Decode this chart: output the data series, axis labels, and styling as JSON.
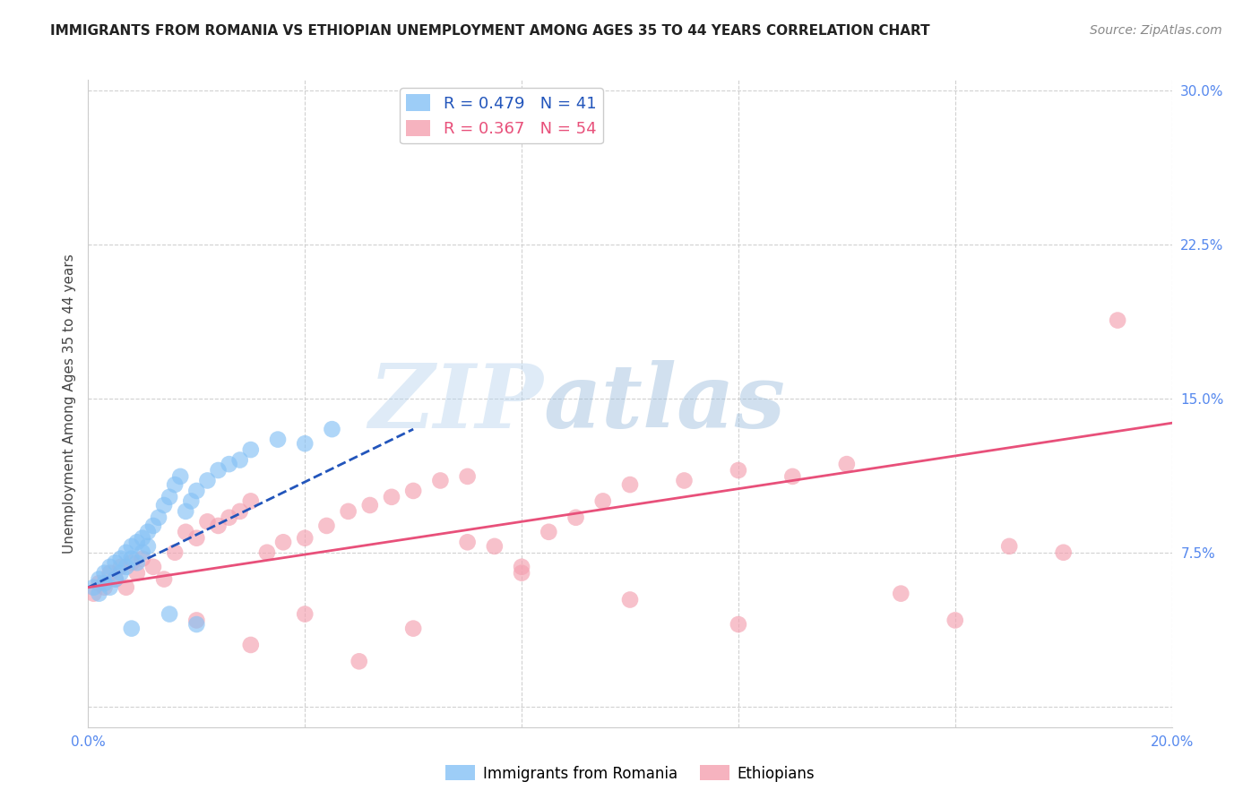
{
  "title": "IMMIGRANTS FROM ROMANIA VS ETHIOPIAN UNEMPLOYMENT AMONG AGES 35 TO 44 YEARS CORRELATION CHART",
  "source": "Source: ZipAtlas.com",
  "ylabel": "Unemployment Among Ages 35 to 44 years",
  "xlim": [
    0.0,
    0.2
  ],
  "ylim": [
    -0.01,
    0.305
  ],
  "xticks": [
    0.0,
    0.04,
    0.08,
    0.12,
    0.16,
    0.2
  ],
  "yticks": [
    0.0,
    0.075,
    0.15,
    0.225,
    0.3
  ],
  "xtick_labels": [
    "0.0%",
    "",
    "",
    "",
    "",
    "20.0%"
  ],
  "ytick_labels": [
    "",
    "7.5%",
    "15.0%",
    "22.5%",
    "30.0%"
  ],
  "romania_color": "#85C1F5",
  "ethiopia_color": "#F4A0B0",
  "romania_R": 0.479,
  "romania_N": 41,
  "ethiopia_R": 0.367,
  "ethiopia_N": 54,
  "romania_line_color": "#2255BB",
  "ethiopia_line_color": "#E8507A",
  "background_color": "#ffffff",
  "grid_color": "#cccccc",
  "romania_scatter_x": [
    0.001,
    0.002,
    0.002,
    0.003,
    0.003,
    0.004,
    0.004,
    0.005,
    0.005,
    0.006,
    0.006,
    0.007,
    0.007,
    0.008,
    0.008,
    0.009,
    0.009,
    0.01,
    0.01,
    0.011,
    0.011,
    0.012,
    0.013,
    0.014,
    0.015,
    0.016,
    0.017,
    0.018,
    0.019,
    0.02,
    0.022,
    0.024,
    0.026,
    0.028,
    0.03,
    0.035,
    0.04,
    0.045,
    0.015,
    0.02,
    0.008
  ],
  "romania_scatter_y": [
    0.058,
    0.062,
    0.055,
    0.065,
    0.06,
    0.068,
    0.058,
    0.07,
    0.062,
    0.072,
    0.065,
    0.075,
    0.068,
    0.078,
    0.072,
    0.08,
    0.07,
    0.082,
    0.075,
    0.085,
    0.078,
    0.088,
    0.092,
    0.098,
    0.102,
    0.108,
    0.112,
    0.095,
    0.1,
    0.105,
    0.11,
    0.115,
    0.118,
    0.12,
    0.125,
    0.13,
    0.128,
    0.135,
    0.045,
    0.04,
    0.038
  ],
  "ethiopia_scatter_x": [
    0.001,
    0.002,
    0.003,
    0.004,
    0.005,
    0.006,
    0.007,
    0.008,
    0.009,
    0.01,
    0.012,
    0.014,
    0.016,
    0.018,
    0.02,
    0.022,
    0.024,
    0.026,
    0.028,
    0.03,
    0.033,
    0.036,
    0.04,
    0.044,
    0.048,
    0.052,
    0.056,
    0.06,
    0.065,
    0.07,
    0.075,
    0.08,
    0.085,
    0.09,
    0.095,
    0.1,
    0.11,
    0.12,
    0.13,
    0.14,
    0.15,
    0.16,
    0.17,
    0.18,
    0.19,
    0.04,
    0.06,
    0.08,
    0.1,
    0.12,
    0.02,
    0.03,
    0.05,
    0.07
  ],
  "ethiopia_scatter_y": [
    0.055,
    0.06,
    0.058,
    0.065,
    0.062,
    0.068,
    0.058,
    0.07,
    0.065,
    0.072,
    0.068,
    0.062,
    0.075,
    0.085,
    0.082,
    0.09,
    0.088,
    0.092,
    0.095,
    0.1,
    0.075,
    0.08,
    0.082,
    0.088,
    0.095,
    0.098,
    0.102,
    0.105,
    0.11,
    0.112,
    0.078,
    0.068,
    0.085,
    0.092,
    0.1,
    0.108,
    0.11,
    0.115,
    0.112,
    0.118,
    0.055,
    0.042,
    0.078,
    0.075,
    0.188,
    0.045,
    0.038,
    0.065,
    0.052,
    0.04,
    0.042,
    0.03,
    0.022,
    0.08
  ],
  "romania_line_x": [
    0.0,
    0.06
  ],
  "romania_line_y": [
    0.058,
    0.135
  ],
  "ethiopia_line_x": [
    0.0,
    0.2
  ],
  "ethiopia_line_y": [
    0.058,
    0.138
  ],
  "watermark_zip": "ZIP",
  "watermark_atlas": "atlas"
}
